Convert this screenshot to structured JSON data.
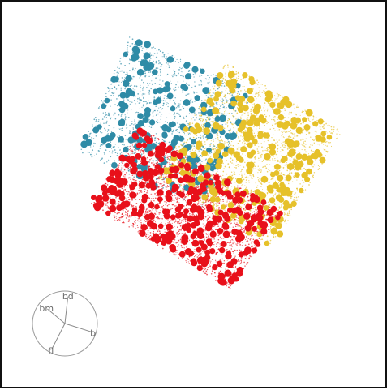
{
  "chart_data": {
    "type": "scatter",
    "title": "",
    "xlabel": "",
    "ylabel": "",
    "grid": false,
    "legend": "none",
    "xlim": [
      -1.2,
      1.2
    ],
    "ylim": [
      -1.2,
      1.2
    ],
    "series": [
      {
        "color": "#2f8ba6",
        "region": {
          "center": [
            -0.3,
            0.45
          ],
          "axis_u": [
            0.48,
            -0.22
          ],
          "axis_v": [
            0.2,
            0.45
          ]
        },
        "points": 170
      },
      {
        "color": "#e6c12a",
        "region": {
          "center": [
            0.35,
            0.2
          ],
          "axis_u": [
            0.45,
            -0.27
          ],
          "axis_v": [
            0.27,
            0.45
          ]
        },
        "points": 230
      },
      {
        "color": "#e8101a",
        "region": {
          "center": [
            -0.15,
            -0.22
          ],
          "axis_u": [
            0.55,
            -0.33
          ],
          "axis_v": [
            0.2,
            0.3
          ]
        },
        "points": 300
      }
    ],
    "biplot": {
      "circle_color": "#9a9a9a",
      "vectors": [
        {
          "label": "bd",
          "direction": [
            0.1,
            0.9
          ]
        },
        {
          "label": "bm",
          "direction": [
            -0.6,
            0.5
          ]
        },
        {
          "label": "bl",
          "direction": [
            0.95,
            -0.3
          ]
        },
        {
          "label": "fl",
          "direction": [
            -0.45,
            -0.88
          ]
        }
      ]
    }
  }
}
